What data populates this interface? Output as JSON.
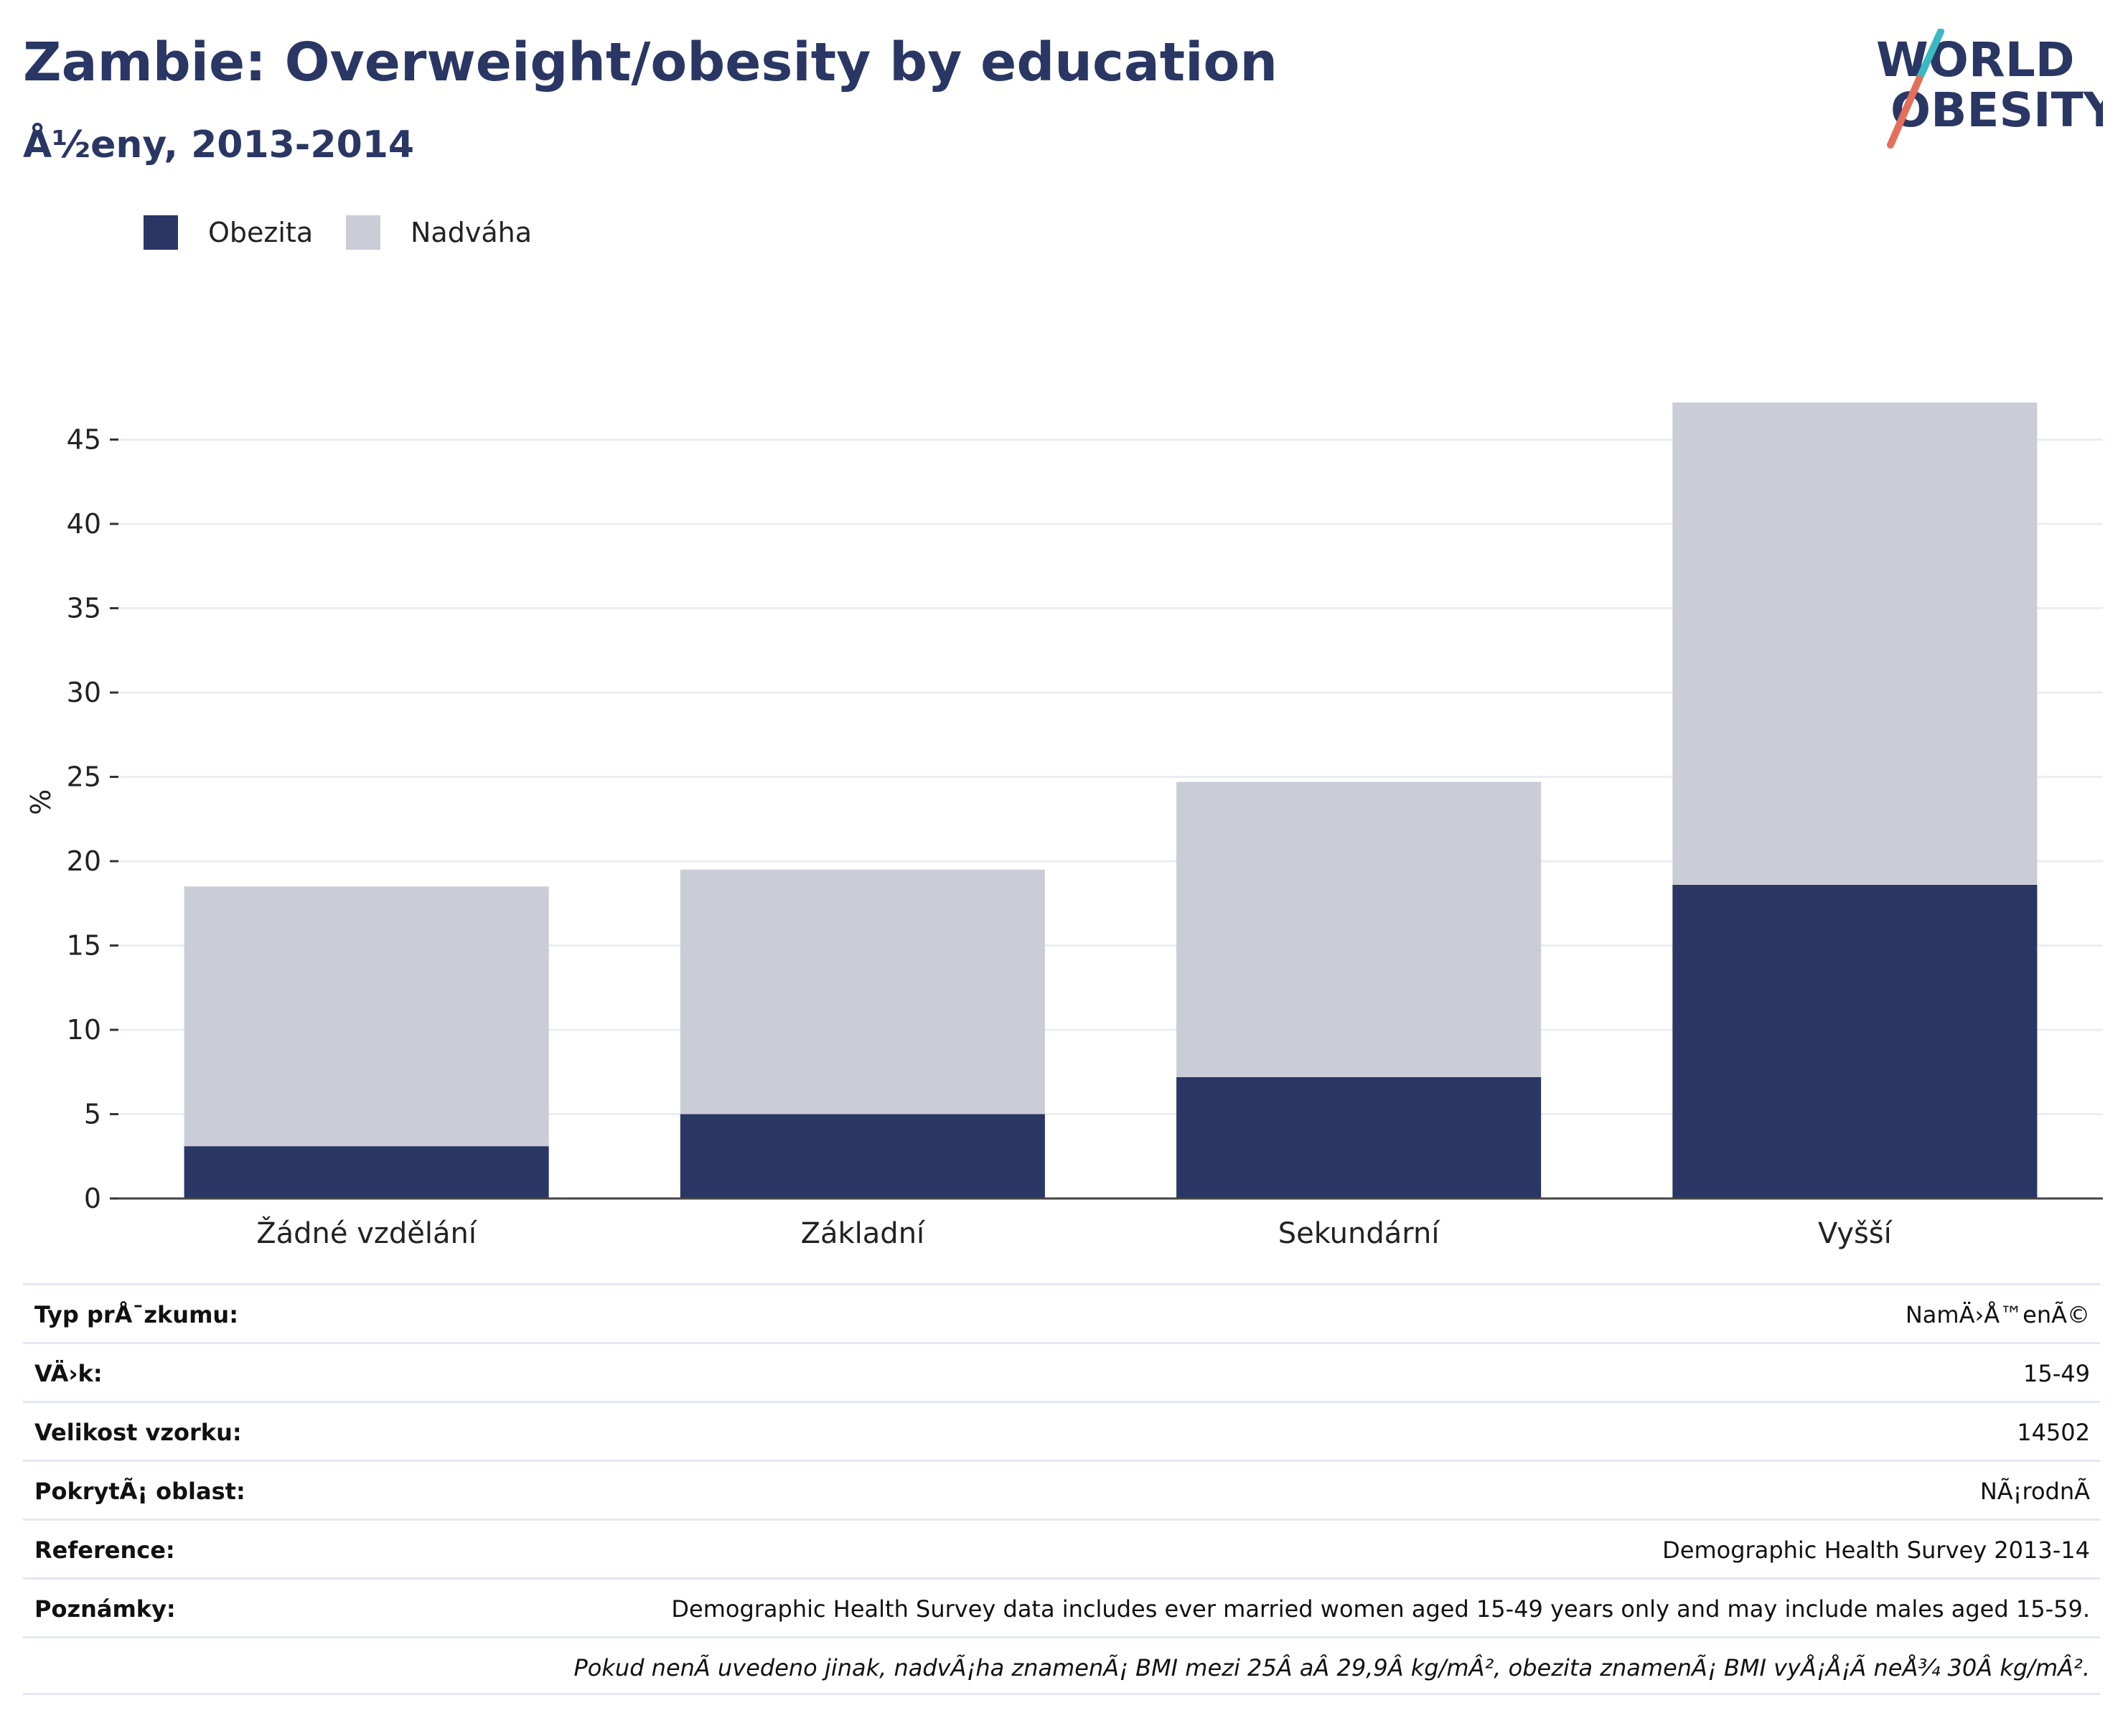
{
  "header": {
    "title": "Zambie: Overweight/obesity by education",
    "subtitle": "Å½eny, 2013-2014"
  },
  "logo": {
    "line1": "WORLD",
    "line2": "OBESITY"
  },
  "colors": {
    "obesity": "#2a3663",
    "overweight": "#cacdd8",
    "title": "#2a3663",
    "logo_teal": "#3cb8c2",
    "logo_coral": "#e46f5b",
    "gridline": "#ebedf2"
  },
  "legend": [
    {
      "label": "Obezita",
      "color": "#2a3663"
    },
    {
      "label": "Nadváha",
      "color": "#cacdd8"
    }
  ],
  "chart_data": {
    "type": "bar",
    "stacked": true,
    "categories": [
      "Žádné vzdělání",
      "Základní",
      "Sekundární",
      "Vyšší"
    ],
    "series": [
      {
        "name": "Obezita",
        "values": [
          3.1,
          5.0,
          7.2,
          18.6
        ]
      },
      {
        "name": "Nadváha",
        "values": [
          15.4,
          14.5,
          17.5,
          28.6
        ]
      }
    ],
    "ylabel": "%",
    "ylim": [
      0,
      47.5
    ],
    "yticks": [
      0,
      5,
      10,
      15,
      20,
      25,
      30,
      35,
      40,
      45
    ],
    "grid": true,
    "legend_position": "top-left"
  },
  "info_table": [
    {
      "label": "Typ prÅ¯zkumu:",
      "value": "NamÄ›Å™enÃ©"
    },
    {
      "label": "VÄ›k:",
      "value": "15-49"
    },
    {
      "label": "Velikost vzorku:",
      "value": "14502"
    },
    {
      "label": "PokrytÃ¡ oblast:",
      "value": "NÃ¡rodnÃ"
    },
    {
      "label": "Reference:",
      "value": "Demographic Health Survey 2013-14"
    },
    {
      "label": "Poznámky:",
      "value": "Demographic Health Survey data includes ever married women aged 15-49 years only and may include males aged 15-59."
    },
    {
      "label": "",
      "value": "Pokud nenÃ uvedeno jinak, nadvÃ¡ha znamenÃ¡ BMI mezi 25Â aÂ 29,9Â kg/mÂ², obezita znamenÃ¡ BMI vyÅ¡Å¡Ã neÅ¾ 30Â kg/mÂ²."
    }
  ]
}
